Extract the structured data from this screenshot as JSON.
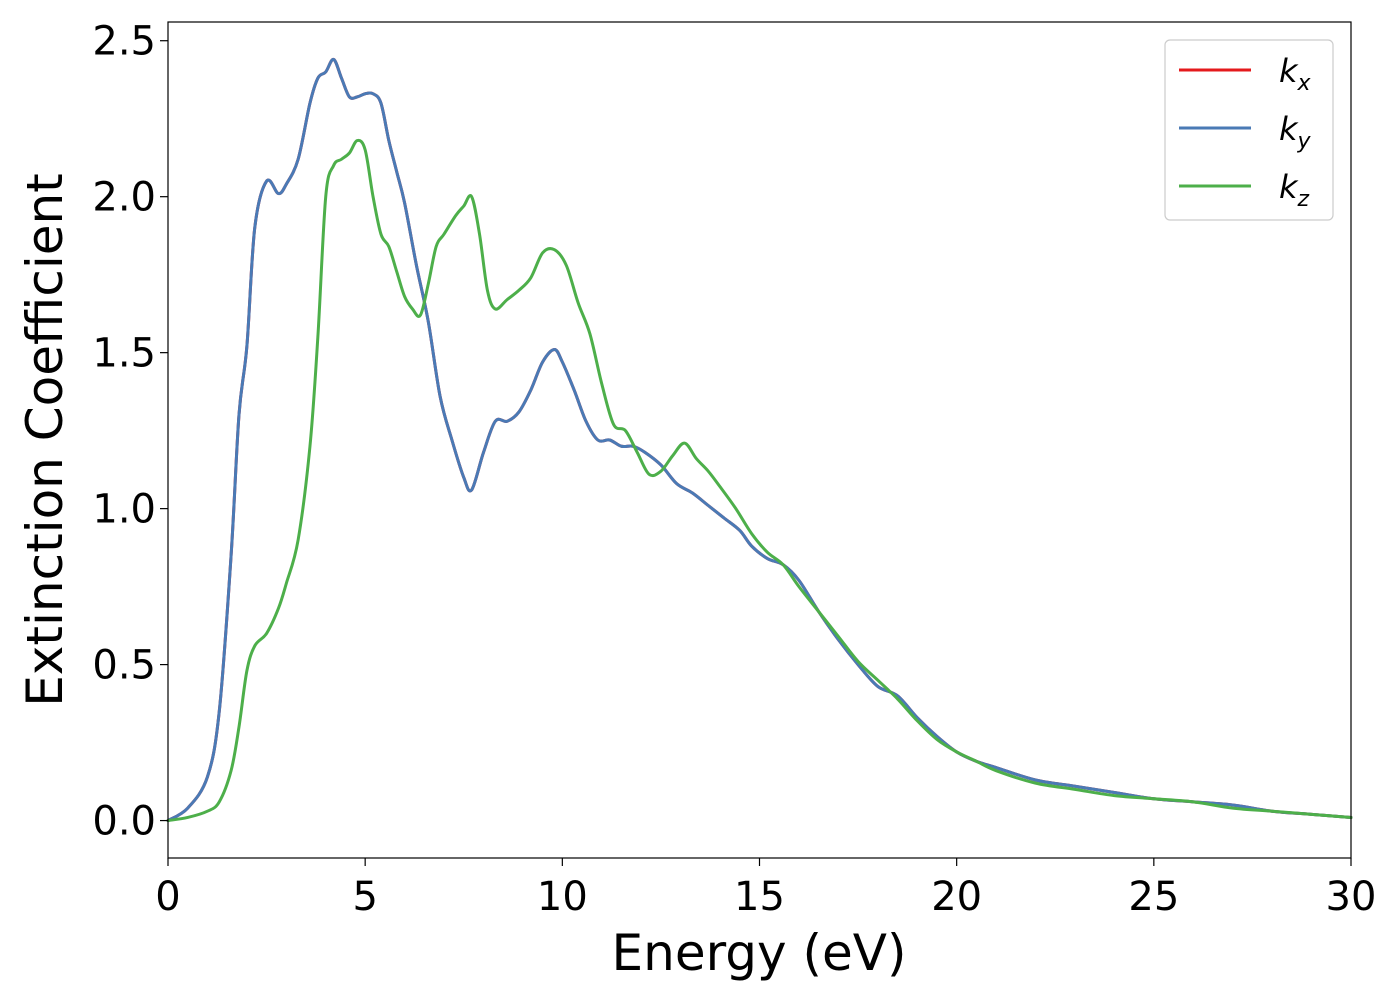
{
  "chart_data": {
    "type": "line",
    "xlabel": "Energy (eV)",
    "ylabel": "Extinction Coefficient",
    "xlim": [
      0,
      30
    ],
    "ylim": [
      -0.12,
      2.56
    ],
    "xticks": [
      0,
      5,
      10,
      15,
      20,
      25,
      30
    ],
    "xtick_labels": [
      "0",
      "5",
      "10",
      "15",
      "20",
      "25",
      "30"
    ],
    "yticks": [
      0.0,
      0.5,
      1.0,
      1.5,
      2.0,
      2.5
    ],
    "ytick_labels": [
      "0.0",
      "0.5",
      "1.0",
      "1.5",
      "2.0",
      "2.5"
    ],
    "grid": false,
    "legend_position": "top-right",
    "series": [
      {
        "name": "k",
        "subscript": "x",
        "color": "#e41a1c",
        "x": [
          0,
          0.5,
          1.0,
          1.3,
          1.6,
          1.8,
          2.0,
          2.2,
          2.5,
          2.8,
          3.0,
          3.3,
          3.6,
          3.8,
          4.0,
          4.2,
          4.4,
          4.6,
          4.8,
          5.0,
          5.2,
          5.4,
          5.6,
          5.8,
          6.0,
          6.3,
          6.6,
          6.9,
          7.2,
          7.5,
          7.7,
          8.0,
          8.3,
          8.6,
          8.9,
          9.2,
          9.5,
          9.8,
          10.0,
          10.3,
          10.6,
          10.9,
          11.2,
          11.5,
          11.8,
          12.1,
          12.5,
          12.9,
          13.3,
          13.7,
          14.1,
          14.5,
          14.8,
          15.2,
          15.6,
          16.0,
          16.5,
          17.0,
          17.5,
          18.0,
          18.5,
          19.0,
          19.5,
          20.0,
          20.5,
          21.0,
          22.0,
          23.0,
          24.0,
          25.0,
          26.0,
          27.0,
          28.0,
          29.0,
          30.0
        ],
        "values": [
          0.0,
          0.04,
          0.14,
          0.35,
          0.85,
          1.3,
          1.52,
          1.9,
          2.05,
          2.01,
          2.04,
          2.12,
          2.3,
          2.38,
          2.4,
          2.44,
          2.38,
          2.32,
          2.32,
          2.33,
          2.33,
          2.3,
          2.18,
          2.08,
          1.98,
          1.78,
          1.6,
          1.36,
          1.22,
          1.1,
          1.06,
          1.18,
          1.28,
          1.28,
          1.31,
          1.38,
          1.47,
          1.51,
          1.47,
          1.38,
          1.28,
          1.22,
          1.22,
          1.2,
          1.2,
          1.18,
          1.14,
          1.08,
          1.05,
          1.01,
          0.97,
          0.93,
          0.88,
          0.84,
          0.82,
          0.77,
          0.67,
          0.58,
          0.5,
          0.43,
          0.4,
          0.33,
          0.27,
          0.22,
          0.19,
          0.17,
          0.13,
          0.11,
          0.09,
          0.07,
          0.06,
          0.05,
          0.03,
          0.02,
          0.01
        ]
      },
      {
        "name": "k",
        "subscript": "y",
        "color": "#4a7ab5",
        "x": [
          0,
          0.5,
          1.0,
          1.3,
          1.6,
          1.8,
          2.0,
          2.2,
          2.5,
          2.8,
          3.0,
          3.3,
          3.6,
          3.8,
          4.0,
          4.2,
          4.4,
          4.6,
          4.8,
          5.0,
          5.2,
          5.4,
          5.6,
          5.8,
          6.0,
          6.3,
          6.6,
          6.9,
          7.2,
          7.5,
          7.7,
          8.0,
          8.3,
          8.6,
          8.9,
          9.2,
          9.5,
          9.8,
          10.0,
          10.3,
          10.6,
          10.9,
          11.2,
          11.5,
          11.8,
          12.1,
          12.5,
          12.9,
          13.3,
          13.7,
          14.1,
          14.5,
          14.8,
          15.2,
          15.6,
          16.0,
          16.5,
          17.0,
          17.5,
          18.0,
          18.5,
          19.0,
          19.5,
          20.0,
          20.5,
          21.0,
          22.0,
          23.0,
          24.0,
          25.0,
          26.0,
          27.0,
          28.0,
          29.0,
          30.0
        ],
        "values": [
          0.0,
          0.04,
          0.14,
          0.35,
          0.85,
          1.3,
          1.52,
          1.9,
          2.05,
          2.01,
          2.04,
          2.12,
          2.3,
          2.38,
          2.4,
          2.44,
          2.38,
          2.32,
          2.32,
          2.33,
          2.33,
          2.3,
          2.18,
          2.08,
          1.98,
          1.78,
          1.6,
          1.36,
          1.22,
          1.1,
          1.06,
          1.18,
          1.28,
          1.28,
          1.31,
          1.38,
          1.47,
          1.51,
          1.47,
          1.38,
          1.28,
          1.22,
          1.22,
          1.2,
          1.2,
          1.18,
          1.14,
          1.08,
          1.05,
          1.01,
          0.97,
          0.93,
          0.88,
          0.84,
          0.82,
          0.77,
          0.67,
          0.58,
          0.5,
          0.43,
          0.4,
          0.33,
          0.27,
          0.22,
          0.19,
          0.17,
          0.13,
          0.11,
          0.09,
          0.07,
          0.06,
          0.05,
          0.03,
          0.02,
          0.01
        ]
      },
      {
        "name": "k",
        "subscript": "z",
        "color": "#4daf4a",
        "x": [
          0,
          0.5,
          1.0,
          1.3,
          1.6,
          1.8,
          2.0,
          2.2,
          2.5,
          2.8,
          3.0,
          3.3,
          3.6,
          3.8,
          4.0,
          4.2,
          4.4,
          4.6,
          4.8,
          5.0,
          5.2,
          5.4,
          5.6,
          5.8,
          6.0,
          6.2,
          6.4,
          6.6,
          6.8,
          7.0,
          7.3,
          7.5,
          7.7,
          7.9,
          8.1,
          8.3,
          8.6,
          8.9,
          9.2,
          9.5,
          9.8,
          10.1,
          10.4,
          10.7,
          11.0,
          11.3,
          11.6,
          11.9,
          12.2,
          12.5,
          12.8,
          13.1,
          13.4,
          13.7,
          14.0,
          14.4,
          14.8,
          15.2,
          15.6,
          16.0,
          16.5,
          17.0,
          17.5,
          18.0,
          18.5,
          19.0,
          19.5,
          20.0,
          20.5,
          21.0,
          22.0,
          23.0,
          24.0,
          25.0,
          26.0,
          27.0,
          28.0,
          29.0,
          30.0
        ],
        "values": [
          0.0,
          0.01,
          0.03,
          0.06,
          0.16,
          0.3,
          0.48,
          0.56,
          0.6,
          0.68,
          0.76,
          0.9,
          1.2,
          1.55,
          2.0,
          2.1,
          2.12,
          2.14,
          2.18,
          2.15,
          2.0,
          1.88,
          1.84,
          1.76,
          1.68,
          1.64,
          1.62,
          1.72,
          1.84,
          1.88,
          1.94,
          1.97,
          2.0,
          1.88,
          1.7,
          1.64,
          1.67,
          1.7,
          1.74,
          1.82,
          1.83,
          1.78,
          1.66,
          1.56,
          1.4,
          1.27,
          1.25,
          1.18,
          1.11,
          1.12,
          1.17,
          1.21,
          1.16,
          1.12,
          1.07,
          1.0,
          0.92,
          0.86,
          0.82,
          0.75,
          0.67,
          0.59,
          0.51,
          0.45,
          0.39,
          0.32,
          0.26,
          0.22,
          0.19,
          0.16,
          0.12,
          0.1,
          0.08,
          0.07,
          0.06,
          0.04,
          0.03,
          0.02,
          0.01
        ]
      }
    ]
  }
}
